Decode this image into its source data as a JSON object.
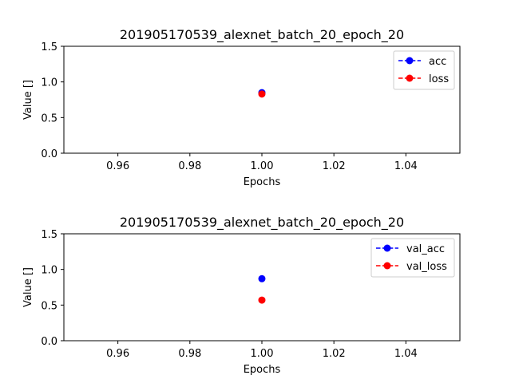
{
  "chart_data": [
    {
      "type": "line",
      "title": "201905170539_alexnet_batch_20_epoch_20",
      "xlabel": "Epochs",
      "ylabel": "Value []",
      "xlim": [
        0.945,
        1.055
      ],
      "ylim": [
        0.0,
        1.5
      ],
      "xticks": [
        "0.96",
        "0.98",
        "1.00",
        "1.02",
        "1.04"
      ],
      "yticks": [
        "0.0",
        "0.5",
        "1.0",
        "1.5"
      ],
      "legend_position": "top-right",
      "grid": false,
      "series": [
        {
          "name": "acc",
          "color": "#0000ff",
          "linestyle": "dashed",
          "marker": "circle",
          "x": [
            1.0
          ],
          "y": [
            0.85
          ]
        },
        {
          "name": "loss",
          "color": "#ff0000",
          "linestyle": "dashed",
          "marker": "circle",
          "x": [
            1.0
          ],
          "y": [
            0.83
          ]
        }
      ]
    },
    {
      "type": "line",
      "title": "201905170539_alexnet_batch_20_epoch_20",
      "xlabel": "Epochs",
      "ylabel": "Value []",
      "xlim": [
        0.945,
        1.055
      ],
      "ylim": [
        0.0,
        1.5
      ],
      "xticks": [
        "0.96",
        "0.98",
        "1.00",
        "1.02",
        "1.04"
      ],
      "yticks": [
        "0.0",
        "0.5",
        "1.0",
        "1.5"
      ],
      "legend_position": "top-right",
      "grid": false,
      "series": [
        {
          "name": "val_acc",
          "color": "#0000ff",
          "linestyle": "dashed",
          "marker": "circle",
          "x": [
            1.0
          ],
          "y": [
            0.87
          ]
        },
        {
          "name": "val_loss",
          "color": "#ff0000",
          "linestyle": "dashed",
          "marker": "circle",
          "x": [
            1.0
          ],
          "y": [
            0.57
          ]
        }
      ]
    }
  ]
}
